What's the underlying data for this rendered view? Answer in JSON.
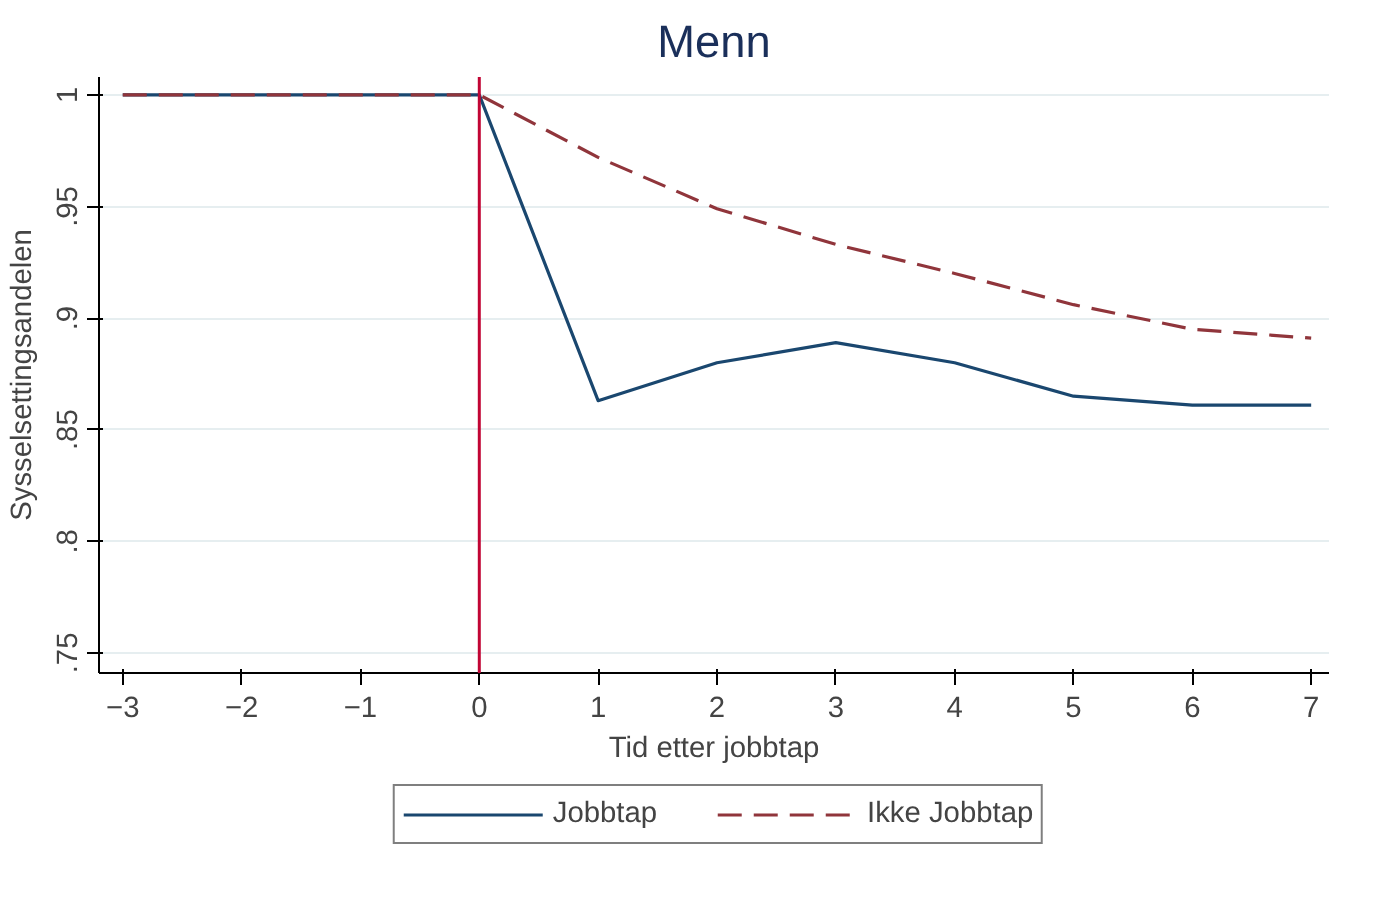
{
  "chart_data": {
    "type": "line",
    "title": "Menn",
    "xlabel": "Tid etter jobbtap",
    "ylabel": "Sysselsettingsandelen",
    "x": [
      -3,
      -2,
      -1,
      0,
      1,
      2,
      3,
      4,
      5,
      6,
      7
    ],
    "series": [
      {
        "name": "Jobbtap",
        "color": "#1a476f",
        "line_style": "solid",
        "values": [
          1,
          1,
          1,
          1,
          0.863,
          0.88,
          0.889,
          0.88,
          0.865,
          0.861,
          0.861
        ]
      },
      {
        "name": "Ikke Jobbtap",
        "color": "#90353b",
        "line_style": "dashed",
        "values": [
          1,
          1,
          1,
          1,
          0.972,
          0.949,
          0.933,
          0.92,
          0.906,
          0.895,
          0.891
        ]
      }
    ],
    "xlim": [
      -3.2,
      7.15
    ],
    "ylim": [
      0.741,
      1.008
    ],
    "xticks": [
      {
        "value": -3,
        "label": "−3"
      },
      {
        "value": -2,
        "label": "−2"
      },
      {
        "value": -1,
        "label": "−1"
      },
      0,
      1,
      2,
      3,
      4,
      5,
      6,
      7
    ],
    "yticks": [
      {
        "value": 0.75,
        "label": ".75"
      },
      {
        "value": 0.8,
        "label": ".8"
      },
      {
        "value": 0.85,
        "label": ".85"
      },
      {
        "value": 0.9,
        "label": ".9"
      },
      {
        "value": 0.95,
        "label": ".95"
      },
      1
    ],
    "ref_lines": [
      {
        "axis": "x",
        "value": 0,
        "color": "#c10534"
      }
    ],
    "grid": "y",
    "legend": "bottom"
  }
}
